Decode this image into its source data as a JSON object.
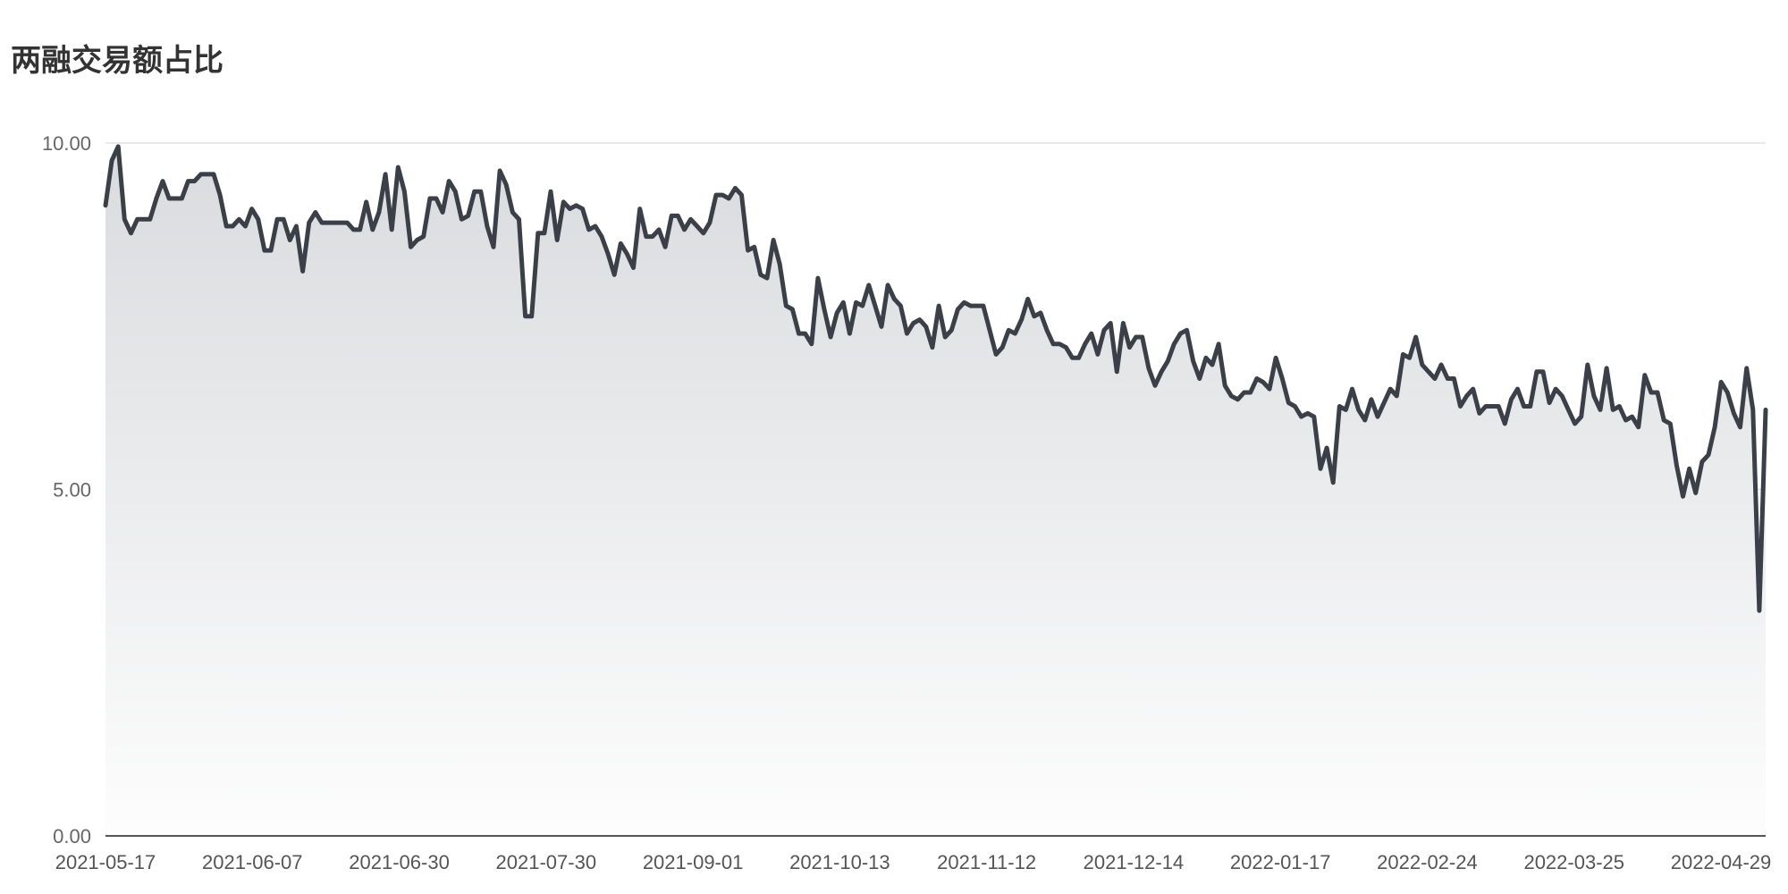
{
  "chart_data": {
    "type": "area",
    "title": "两融交易额占比",
    "xlabel": "",
    "ylabel": "",
    "ylim": [
      0,
      10
    ],
    "yticks": [
      "0.00",
      "5.00",
      "10.00"
    ],
    "grid": true,
    "x_tick_labels": [
      "2021-05-17",
      "2021-06-07",
      "2021-06-30",
      "2021-07-30",
      "2021-09-01",
      "2021-10-13",
      "2021-11-12",
      "2021-12-14",
      "2022-01-17",
      "2022-02-24",
      "2022-03-25",
      "2022-04-29"
    ],
    "series": [
      {
        "name": "",
        "color": "#3b4048",
        "values": [
          9.1,
          9.75,
          9.95,
          8.9,
          8.7,
          8.9,
          8.9,
          8.9,
          9.2,
          9.45,
          9.2,
          9.2,
          9.2,
          9.45,
          9.45,
          9.55,
          9.55,
          9.55,
          9.25,
          8.8,
          8.8,
          8.9,
          8.8,
          9.05,
          8.9,
          8.45,
          8.45,
          8.9,
          8.9,
          8.6,
          8.8,
          8.15,
          8.85,
          9.0,
          8.85,
          8.85,
          8.85,
          8.85,
          8.85,
          8.75,
          8.75,
          9.15,
          8.75,
          9.0,
          9.55,
          8.75,
          9.65,
          9.3,
          8.5,
          8.6,
          8.65,
          9.2,
          9.2,
          9.0,
          9.45,
          9.3,
          8.9,
          8.95,
          9.3,
          9.3,
          8.8,
          8.5,
          9.6,
          9.4,
          9.0,
          8.9,
          7.5,
          7.5,
          8.7,
          8.7,
          9.3,
          8.6,
          9.15,
          9.05,
          9.1,
          9.05,
          8.75,
          8.8,
          8.65,
          8.4,
          8.1,
          8.55,
          8.4,
          8.2,
          9.05,
          8.65,
          8.65,
          8.75,
          8.5,
          8.95,
          8.95,
          8.75,
          8.9,
          8.8,
          8.7,
          8.85,
          9.25,
          9.25,
          9.2,
          9.35,
          9.25,
          8.45,
          8.5,
          8.1,
          8.05,
          8.6,
          8.25,
          7.65,
          7.6,
          7.25,
          7.25,
          7.1,
          8.05,
          7.6,
          7.2,
          7.55,
          7.7,
          7.25,
          7.7,
          7.65,
          7.95,
          7.65,
          7.35,
          7.95,
          7.75,
          7.65,
          7.25,
          7.4,
          7.45,
          7.35,
          7.05,
          7.65,
          7.2,
          7.3,
          7.6,
          7.7,
          7.65,
          7.65,
          7.65,
          7.3,
          6.95,
          7.05,
          7.3,
          7.25,
          7.45,
          7.75,
          7.5,
          7.55,
          7.3,
          7.1,
          7.1,
          7.05,
          6.9,
          6.9,
          7.1,
          7.25,
          6.95,
          7.3,
          7.4,
          6.7,
          7.4,
          7.05,
          7.2,
          7.2,
          6.75,
          6.5,
          6.7,
          6.85,
          7.1,
          7.25,
          7.3,
          6.85,
          6.6,
          6.9,
          6.8,
          7.1,
          6.5,
          6.35,
          6.3,
          6.4,
          6.4,
          6.6,
          6.55,
          6.45,
          6.9,
          6.6,
          6.25,
          6.2,
          6.05,
          6.1,
          6.05,
          5.3,
          5.6,
          5.1,
          6.2,
          6.15,
          6.45,
          6.15,
          6.0,
          6.3,
          6.05,
          6.25,
          6.45,
          6.35,
          6.95,
          6.9,
          7.2,
          6.8,
          6.7,
          6.6,
          6.8,
          6.6,
          6.6,
          6.2,
          6.35,
          6.45,
          6.1,
          6.2,
          6.2,
          6.2,
          5.95,
          6.3,
          6.45,
          6.2,
          6.2,
          6.7,
          6.7,
          6.25,
          6.45,
          6.35,
          6.15,
          5.95,
          6.05,
          6.8,
          6.35,
          6.15,
          6.75,
          6.15,
          6.2,
          6.0,
          6.05,
          5.9,
          6.65,
          6.4,
          6.4,
          6.0,
          5.95,
          5.35,
          4.9,
          5.3,
          4.95,
          5.4,
          5.5,
          5.9,
          6.55,
          6.4,
          6.1,
          5.9,
          6.75,
          6.15,
          3.25,
          6.15
        ]
      }
    ]
  }
}
